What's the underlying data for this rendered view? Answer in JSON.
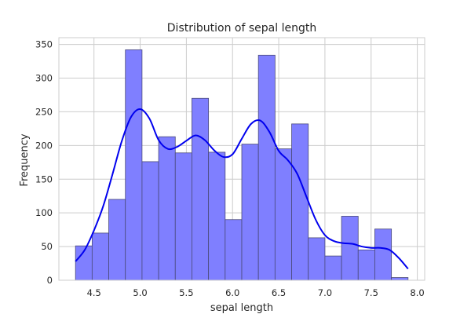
{
  "chart_data": {
    "type": "bar",
    "title": "Distribution of sepal length",
    "xlabel": "sepal length",
    "ylabel": "Frequency",
    "xlim": [
      4.12,
      8.08
    ],
    "ylim": [
      0,
      360
    ],
    "grid": true,
    "bins": [
      {
        "x0": 4.3,
        "x1": 4.48,
        "count": 51
      },
      {
        "x0": 4.48,
        "x1": 4.66,
        "count": 70
      },
      {
        "x0": 4.66,
        "x1": 4.84,
        "count": 120
      },
      {
        "x0": 4.84,
        "x1": 5.02,
        "count": 342
      },
      {
        "x0": 5.02,
        "x1": 5.2,
        "count": 176
      },
      {
        "x0": 5.2,
        "x1": 5.38,
        "count": 213
      },
      {
        "x0": 5.38,
        "x1": 5.56,
        "count": 189
      },
      {
        "x0": 5.56,
        "x1": 5.74,
        "count": 270
      },
      {
        "x0": 5.74,
        "x1": 5.92,
        "count": 190
      },
      {
        "x0": 5.92,
        "x1": 6.1,
        "count": 90
      },
      {
        "x0": 6.1,
        "x1": 6.28,
        "count": 202
      },
      {
        "x0": 6.28,
        "x1": 6.46,
        "count": 334
      },
      {
        "x0": 6.46,
        "x1": 6.64,
        "count": 195
      },
      {
        "x0": 6.64,
        "x1": 6.82,
        "count": 232
      },
      {
        "x0": 6.82,
        "x1": 7.0,
        "count": 63
      },
      {
        "x0": 7.0,
        "x1": 7.18,
        "count": 36
      },
      {
        "x0": 7.18,
        "x1": 7.36,
        "count": 95
      },
      {
        "x0": 7.36,
        "x1": 7.54,
        "count": 45
      },
      {
        "x0": 7.54,
        "x1": 7.72,
        "count": 76
      },
      {
        "x0": 7.72,
        "x1": 7.9,
        "count": 4
      }
    ],
    "kde": {
      "x": [
        4.3,
        4.4,
        4.5,
        4.6,
        4.7,
        4.8,
        4.9,
        5.0,
        5.1,
        5.2,
        5.3,
        5.4,
        5.5,
        5.6,
        5.7,
        5.8,
        5.9,
        6.0,
        6.1,
        6.2,
        6.3,
        6.4,
        6.5,
        6.6,
        6.7,
        6.8,
        6.9,
        7.0,
        7.1,
        7.2,
        7.3,
        7.4,
        7.5,
        7.6,
        7.7,
        7.8,
        7.9
      ],
      "y": [
        28,
        45,
        74,
        110,
        157,
        206,
        242,
        254,
        240,
        208,
        195,
        198,
        207,
        215,
        208,
        193,
        183,
        187,
        210,
        232,
        237,
        220,
        192,
        178,
        158,
        124,
        90,
        67,
        58,
        55,
        54,
        50,
        48,
        48,
        45,
        33,
        17
      ]
    },
    "xticks": [
      "4.5",
      "5.0",
      "5.5",
      "6.0",
      "6.5",
      "7.0",
      "7.5",
      "8.0"
    ],
    "yticks": [
      "0",
      "50",
      "100",
      "150",
      "200",
      "250",
      "300",
      "350"
    ],
    "colors": {
      "bar_fill": "#7f7fff",
      "bar_edge": "#4a4a7a",
      "kde_line": "#0000ee",
      "grid": "#cccccc",
      "axes_edge": "#cccccc",
      "text": "#262626"
    }
  }
}
